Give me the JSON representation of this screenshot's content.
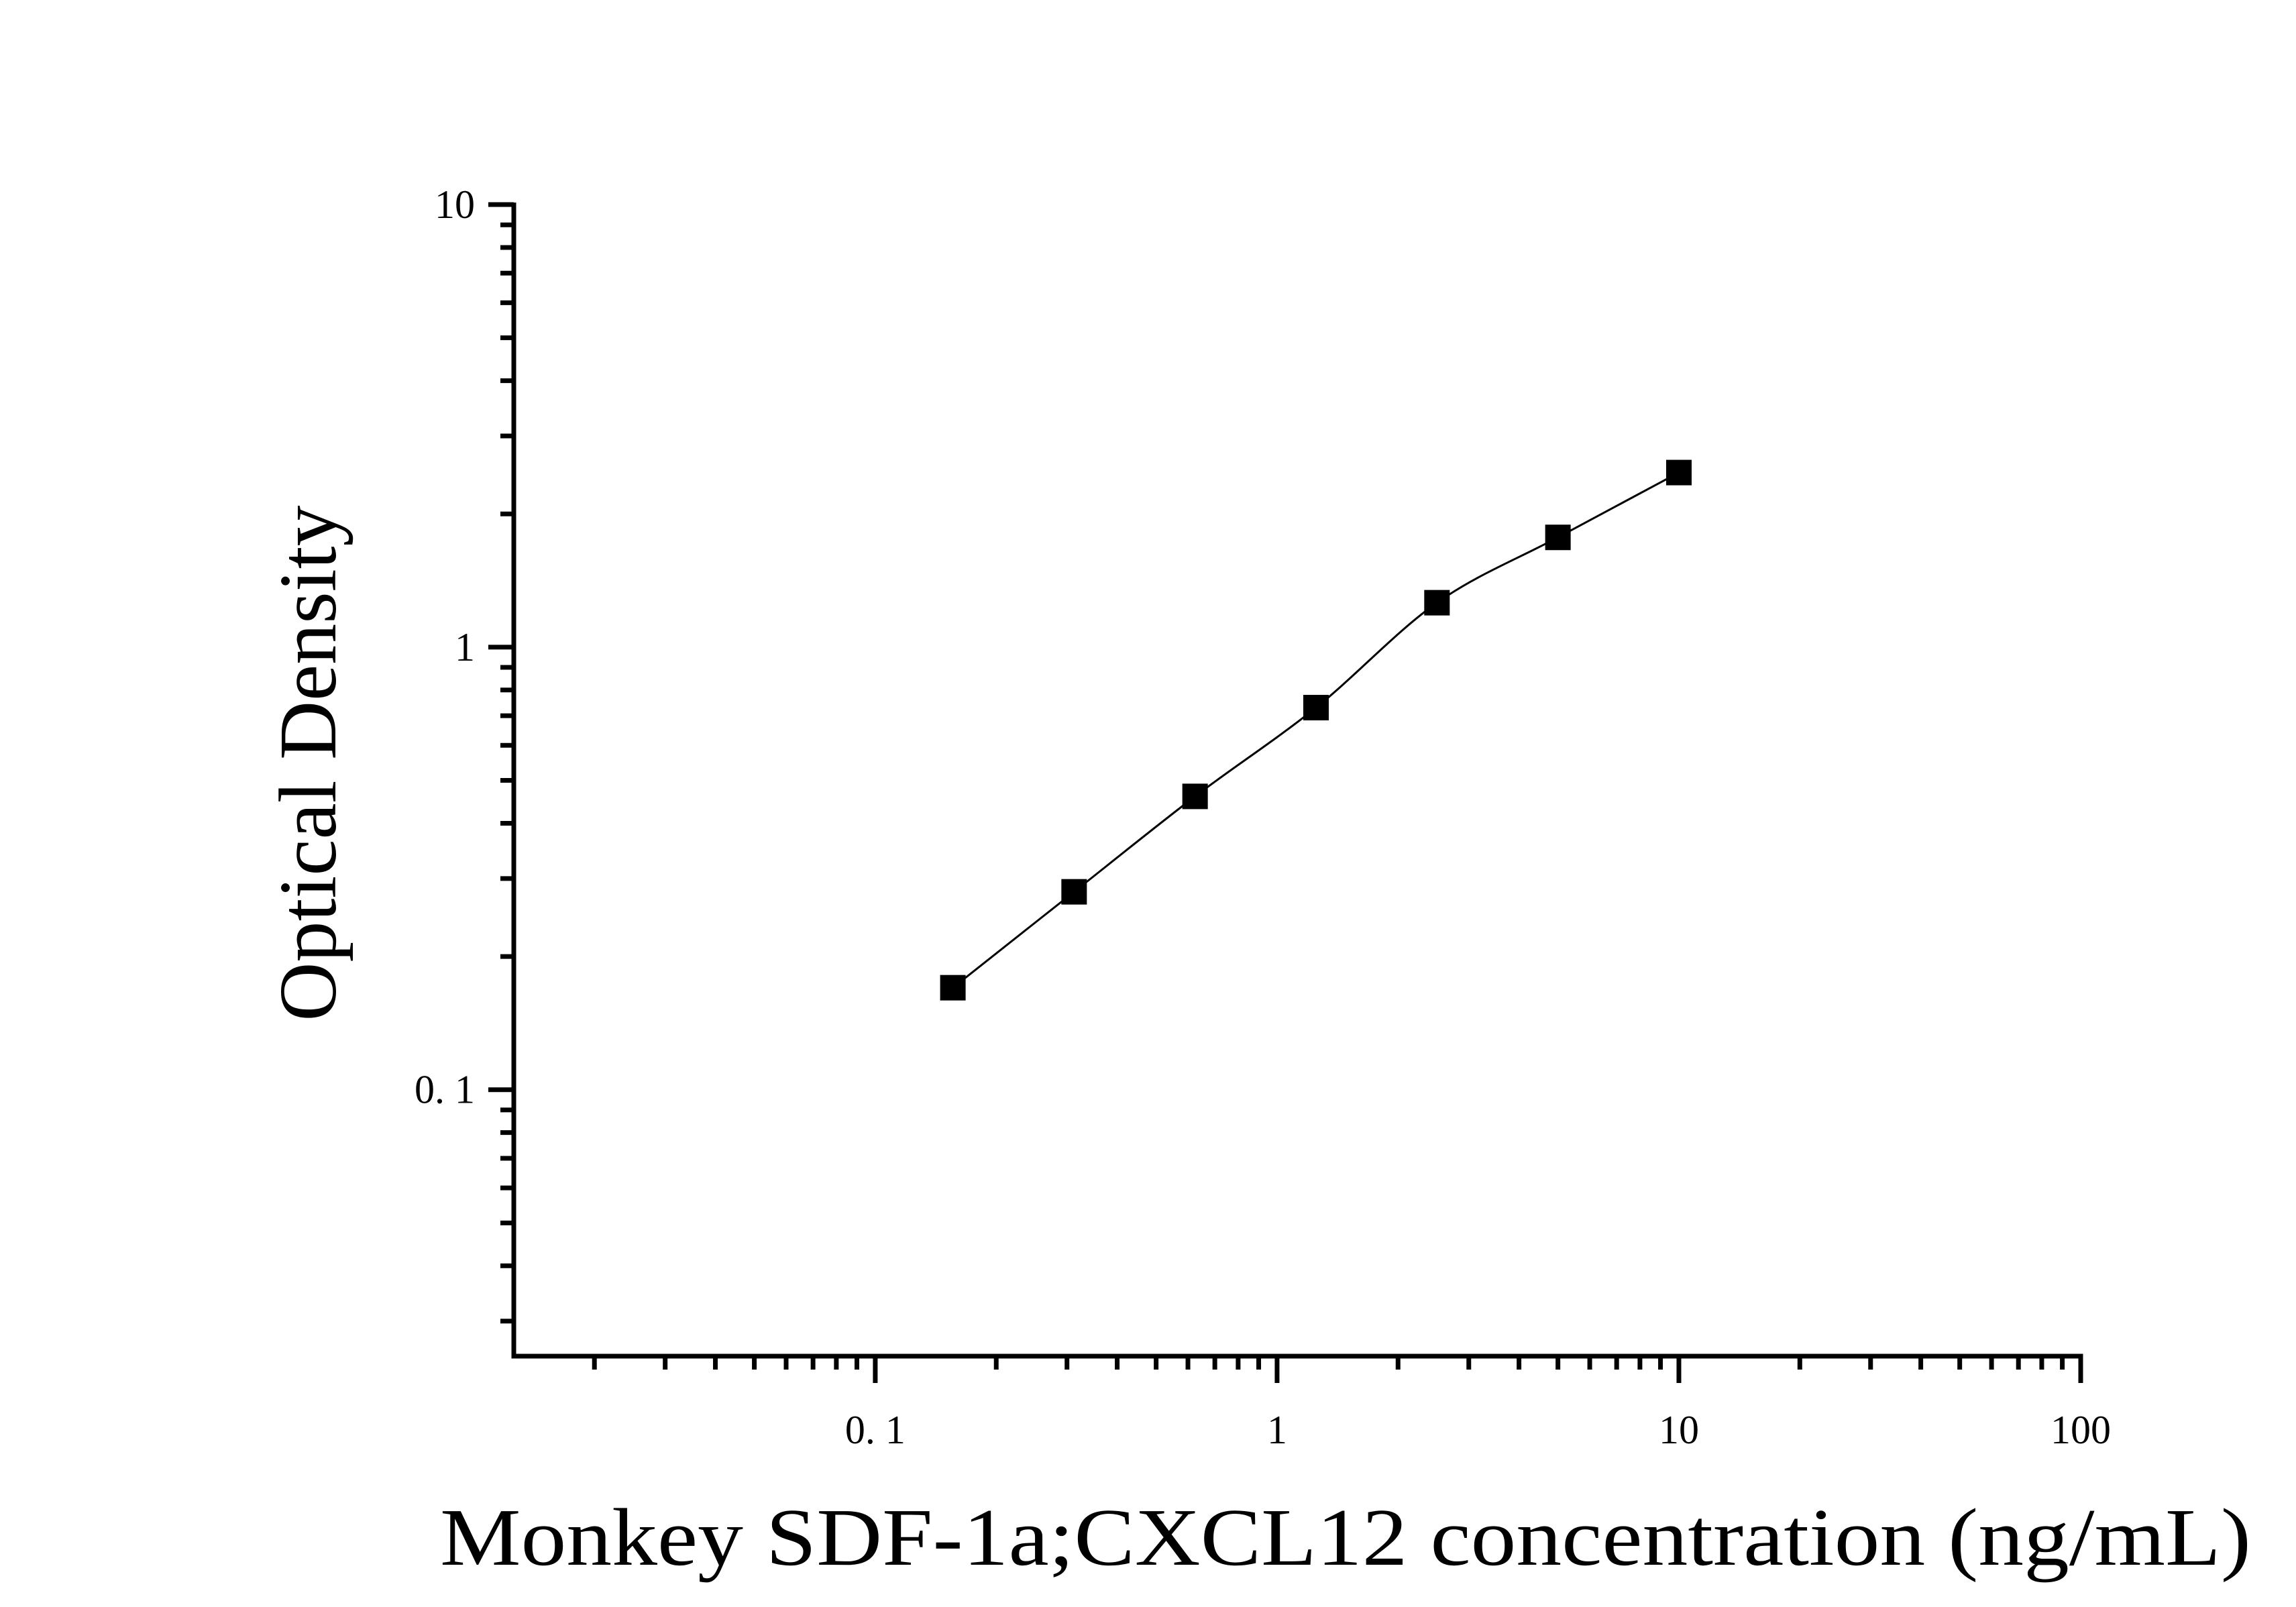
{
  "chart_data": {
    "type": "scatter",
    "title": "",
    "xlabel": "Monkey SDF-1a;CXCL12 concentration (ng/mL)",
    "ylabel": "Optical Density",
    "xscale": "log",
    "yscale": "log",
    "xlim": [
      0.0126,
      100
    ],
    "ylim": [
      0.025,
      10
    ],
    "x_tick_labels": [
      "0.1",
      "1",
      "10",
      "100"
    ],
    "x_tick_values": [
      0.1,
      1,
      10,
      100
    ],
    "y_tick_labels": [
      "0.1",
      "1",
      "10"
    ],
    "y_tick_values": [
      0.1,
      1,
      10
    ],
    "grid": false,
    "legend": null,
    "marker": "filled-square",
    "fit_line": "smooth curve through points (4-parameter logistic style)",
    "series": [
      {
        "name": "Standard curve",
        "color": "#000000",
        "x": [
          0.156,
          0.3125,
          0.625,
          1.25,
          2.5,
          5,
          10
        ],
        "y": [
          0.17,
          0.28,
          0.46,
          0.73,
          1.26,
          1.77,
          2.48
        ]
      }
    ]
  },
  "labels": {
    "x_axis_title": "Monkey SDF-1a;CXCL12 concentration (ng/mL)",
    "y_axis_title": "Optical Density",
    "x_ticks": [
      "0. 1",
      "1",
      "10",
      "100"
    ],
    "y_ticks": [
      "0. 1",
      "1",
      "10"
    ]
  },
  "colors": {
    "background": "#ffffff",
    "axis": "#000000",
    "marker": "#000000",
    "line": "#000000"
  }
}
